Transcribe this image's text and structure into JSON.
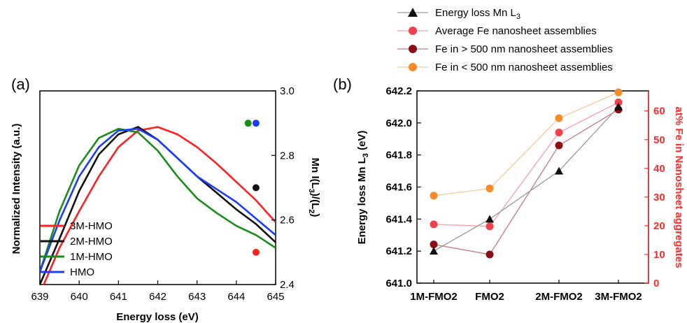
{
  "chart_data": [
    {
      "type": "line",
      "panel_label": "(a)",
      "xlabel": "Energy loss (eV)",
      "ylabel_left": "Normalized Intensity (a.u.)",
      "ylabel_right": "Mn I(L3)/(L2)",
      "ylabel_right_parts": {
        "a": "Mn I(L",
        "b": "3",
        "c": ")/(L",
        "d": "2",
        "e": ")"
      },
      "xlim": [
        639,
        645
      ],
      "ylim_right": [
        2.4,
        3.0
      ],
      "x_ticks": [
        "639",
        "640",
        "641",
        "642",
        "643",
        "644",
        "645"
      ],
      "y_right_ticks": [
        "2.4",
        "2.6",
        "2.8",
        "3.0"
      ],
      "series": [
        {
          "name": "3M-HMO",
          "color": "#ff2020",
          "x": [
            639,
            639.5,
            640,
            640.5,
            641,
            641.5,
            642,
            642.5,
            643,
            643.5,
            644,
            644.5,
            645
          ],
          "y": [
            0.0,
            0.25,
            0.45,
            0.64,
            0.8,
            0.89,
            0.91,
            0.87,
            0.8,
            0.71,
            0.61,
            0.51,
            0.39
          ]
        },
        {
          "name": "2M-HMO",
          "color": "#111111",
          "x": [
            639,
            639.5,
            640,
            640.5,
            641,
            641.5,
            642,
            642.5,
            643,
            643.5,
            644,
            644.5,
            645
          ],
          "y": [
            0.05,
            0.3,
            0.56,
            0.76,
            0.87,
            0.91,
            0.84,
            0.74,
            0.64,
            0.55,
            0.46,
            0.38,
            0.28
          ]
        },
        {
          "name": "1M-HMO",
          "color": "#1a8c1a",
          "x": [
            639,
            639.5,
            640,
            640.5,
            641,
            641.5,
            642,
            642.5,
            643,
            643.5,
            644,
            644.5,
            645
          ],
          "y": [
            0.12,
            0.45,
            0.7,
            0.85,
            0.9,
            0.88,
            0.78,
            0.64,
            0.52,
            0.44,
            0.37,
            0.32,
            0.25
          ]
        },
        {
          "name": "HMO",
          "color": "#1a3cff",
          "x": [
            639,
            639.5,
            640,
            640.5,
            641,
            641.5,
            642,
            642.5,
            643,
            643.5,
            644,
            644.5,
            645
          ],
          "y": [
            0.12,
            0.4,
            0.64,
            0.8,
            0.89,
            0.9,
            0.84,
            0.74,
            0.64,
            0.57,
            0.5,
            0.41,
            0.32
          ]
        }
      ],
      "ratio_points": [
        {
          "x": 644.3,
          "y": 2.9,
          "color": "#1a8c1a"
        },
        {
          "x": 644.5,
          "y": 2.9,
          "color": "#1a3cff"
        },
        {
          "x": 644.5,
          "y": 2.7,
          "color": "#111111"
        },
        {
          "x": 644.5,
          "y": 2.5,
          "color": "#ff2020"
        }
      ]
    },
    {
      "type": "line",
      "panel_label": "(b)",
      "categories": [
        "1M-FMO2",
        "FMO2",
        "2M-FMO2",
        "3M-FMO2"
      ],
      "ylabel_left": "Energy loss Mn L3 (eV)",
      "ylabel_left_parts": {
        "a": "Energy loss Mn L",
        "b": "3",
        "c": " (eV)"
      },
      "ylabel_right": "at% Fe in Nanosheet aggregates",
      "ylim_left": [
        641.0,
        642.2
      ],
      "ylim_right": [
        0,
        67
      ],
      "y_left_ticks": [
        "641.0",
        "641.2",
        "641.4",
        "641.6",
        "641.8",
        "642.0",
        "642.2"
      ],
      "y_right_ticks": [
        "0",
        "10",
        "20",
        "30",
        "40",
        "50",
        "60"
      ],
      "series": [
        {
          "name": "Energy loss Mn L3",
          "name_parts": {
            "a": "Energy loss Mn L",
            "b": "3"
          },
          "axis": "left",
          "marker": "triangle",
          "color": "#111111",
          "line": "#9a9a9a",
          "values": [
            641.2,
            641.4,
            641.7,
            642.1
          ]
        },
        {
          "name": "Average Fe nanosheet assemblies",
          "axis": "right",
          "marker": "circle",
          "color": "#f2404a",
          "line": "#f7a0a4",
          "values": [
            20.5,
            19.8,
            52.5,
            63.0
          ]
        },
        {
          "name": "Fe in > 500 nm nanosheet assemblies",
          "axis": "right",
          "marker": "circle",
          "color": "#8b0f14",
          "line": "#c77a7e",
          "values": [
            13.5,
            10.0,
            48.0,
            60.5
          ]
        },
        {
          "name": "Fe in < 500 nm nanosheet assemblies",
          "axis": "right",
          "marker": "circle",
          "color": "#f78a2a",
          "line": "#f7c89a",
          "values": [
            30.5,
            33.0,
            57.5,
            66.5
          ]
        }
      ]
    }
  ]
}
